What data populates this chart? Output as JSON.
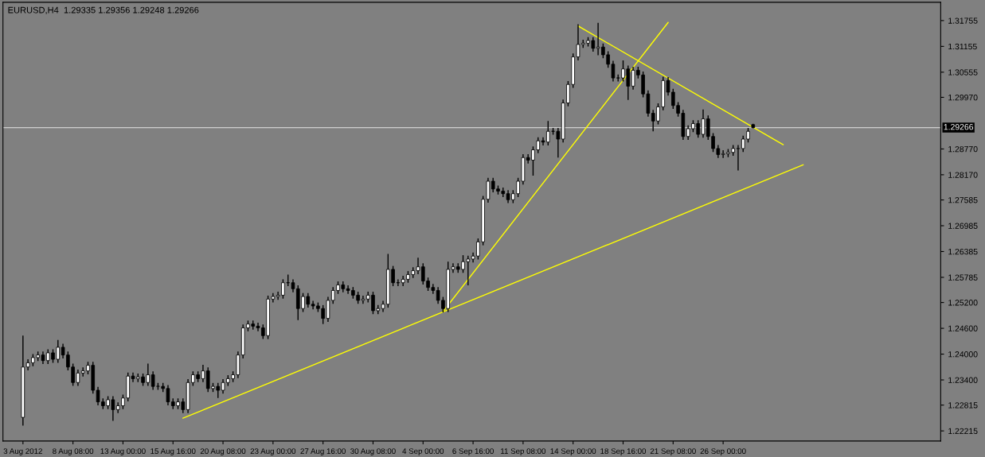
{
  "chart_data": {
    "type": "candlestick",
    "title": "EURUSD,H4  1.29335 1.29356 1.29248 1.29266",
    "categories": [
      "3 Aug 2012",
      null,
      null,
      null,
      null,
      null,
      null,
      null,
      null,
      null,
      "8 Aug 08:00",
      null,
      null,
      null,
      null,
      null,
      null,
      null,
      null,
      null,
      "13 Aug 00:00",
      null,
      null,
      null,
      null,
      null,
      null,
      null,
      null,
      null,
      "15 Aug 16:00",
      null,
      null,
      null,
      null,
      null,
      null,
      null,
      null,
      null,
      "20 Aug 08:00",
      null,
      null,
      null,
      null,
      null,
      null,
      null,
      null,
      null,
      "23 Aug 00:00",
      null,
      null,
      null,
      null,
      null,
      null,
      null,
      null,
      null,
      "27 Aug 16:00",
      null,
      null,
      null,
      null,
      null,
      null,
      null,
      null,
      null,
      "30 Aug 08:00",
      null,
      null,
      null,
      null,
      null,
      null,
      null,
      null,
      null,
      "4 Sep 00:00",
      null,
      null,
      null,
      null,
      null,
      null,
      null,
      null,
      null,
      "6 Sep 16:00",
      null,
      null,
      null,
      null,
      null,
      null,
      null,
      null,
      null,
      "11 Sep 08:00",
      null,
      null,
      null,
      null,
      null,
      null,
      null,
      null,
      null,
      "14 Sep 00:00",
      null,
      null,
      null,
      null,
      null,
      null,
      null,
      null,
      null,
      "18 Sep 16:00",
      null,
      null,
      null,
      null,
      null,
      null,
      null,
      null,
      null,
      "21 Sep 08:00",
      null,
      null,
      null,
      null,
      null,
      null,
      null,
      null,
      null,
      "26 Sep 00:00",
      null,
      null,
      null,
      null,
      null,
      null,
      null,
      null,
      null,
      null,
      null,
      null,
      null,
      null,
      null,
      null,
      null,
      null,
      null,
      null,
      null,
      null,
      null,
      null,
      null,
      null,
      null,
      null,
      null,
      null,
      null,
      null,
      null,
      null,
      null,
      null,
      null,
      null,
      null,
      null,
      null,
      null,
      null
    ],
    "ohlc": [
      [
        1.2253,
        1.2443,
        1.2234,
        1.237
      ],
      [
        1.237,
        1.2388,
        1.2362,
        1.238
      ],
      [
        1.238,
        1.24,
        1.2372,
        1.2392
      ],
      [
        1.2392,
        1.2406,
        1.2384,
        1.2398
      ],
      [
        1.2398,
        1.2406,
        1.2377,
        1.2385
      ],
      [
        1.2385,
        1.2411,
        1.2377,
        1.2403
      ],
      [
        1.2403,
        1.2411,
        1.238,
        1.2388
      ],
      [
        1.2388,
        1.2433,
        1.238,
        1.2416
      ],
      [
        1.2416,
        1.2424,
        1.239,
        1.2398
      ],
      [
        1.2398,
        1.2406,
        1.2362,
        1.237
      ],
      [
        1.237,
        1.2378,
        1.2326,
        1.2334
      ],
      [
        1.2334,
        1.2364,
        1.2326,
        1.2356
      ],
      [
        1.2356,
        1.2369,
        1.2348,
        1.2361
      ],
      [
        1.2361,
        1.2382,
        1.2353,
        1.2374
      ],
      [
        1.2374,
        1.2382,
        1.2308,
        1.2316
      ],
      [
        1.2316,
        1.2324,
        1.2281,
        1.2289
      ],
      [
        1.2289,
        1.2297,
        1.2272,
        1.228
      ],
      [
        1.228,
        1.2302,
        1.2272,
        1.2294
      ],
      [
        1.2294,
        1.2302,
        1.2245,
        1.2271
      ],
      [
        1.2271,
        1.2288,
        1.2263,
        1.228
      ],
      [
        1.228,
        1.2306,
        1.2272,
        1.2298
      ],
      [
        1.2298,
        1.2357,
        1.229,
        1.2349
      ],
      [
        1.2349,
        1.2357,
        1.2335,
        1.2343
      ],
      [
        1.2343,
        1.2355,
        1.2335,
        1.2347
      ],
      [
        1.2347,
        1.2355,
        1.2326,
        1.2334
      ],
      [
        1.2334,
        1.2378,
        1.2326,
        1.2352
      ],
      [
        1.2352,
        1.236,
        1.2317,
        1.2325
      ],
      [
        1.2325,
        1.2333,
        1.2317,
        1.2325
      ],
      [
        1.2325,
        1.2333,
        1.2312,
        1.232
      ],
      [
        1.232,
        1.2328,
        1.2281,
        1.2289
      ],
      [
        1.2289,
        1.2297,
        1.2272,
        1.228
      ],
      [
        1.228,
        1.2297,
        1.2272,
        1.2289
      ],
      [
        1.2289,
        1.2297,
        1.2263,
        1.2271
      ],
      [
        1.2271,
        1.2342,
        1.2263,
        1.2334
      ],
      [
        1.2334,
        1.236,
        1.2326,
        1.2352
      ],
      [
        1.2352,
        1.236,
        1.2335,
        1.2343
      ],
      [
        1.2343,
        1.2375,
        1.2335,
        1.2361
      ],
      [
        1.2361,
        1.2369,
        1.2312,
        1.232
      ],
      [
        1.232,
        1.2333,
        1.2312,
        1.2325
      ],
      [
        1.2325,
        1.2333,
        1.2298,
        1.2316
      ],
      [
        1.2316,
        1.2342,
        1.2308,
        1.2334
      ],
      [
        1.2334,
        1.2351,
        1.2326,
        1.2343
      ],
      [
        1.2343,
        1.236,
        1.2335,
        1.2352
      ],
      [
        1.2352,
        1.2406,
        1.2344,
        1.2398
      ],
      [
        1.2398,
        1.2469,
        1.239,
        1.2461
      ],
      [
        1.2461,
        1.2478,
        1.2453,
        1.247
      ],
      [
        1.247,
        1.2478,
        1.2457,
        1.2465
      ],
      [
        1.2465,
        1.2473,
        1.2453,
        1.2461
      ],
      [
        1.2461,
        1.2469,
        1.2435,
        1.2443
      ],
      [
        1.2443,
        1.2536,
        1.2435,
        1.2528
      ],
      [
        1.2528,
        1.2542,
        1.252,
        1.2534
      ],
      [
        1.2534,
        1.2545,
        1.2526,
        1.2537
      ],
      [
        1.2537,
        1.2574,
        1.2529,
        1.2566
      ],
      [
        1.2566,
        1.2585,
        1.2558,
        1.2566
      ],
      [
        1.2566,
        1.2574,
        1.2544,
        1.2552
      ],
      [
        1.2552,
        1.256,
        1.2479,
        1.2506
      ],
      [
        1.2506,
        1.2542,
        1.2498,
        1.2534
      ],
      [
        1.2534,
        1.2542,
        1.2508,
        1.2516
      ],
      [
        1.2516,
        1.2524,
        1.2504,
        1.2512
      ],
      [
        1.2512,
        1.252,
        1.2498,
        1.2506
      ],
      [
        1.2506,
        1.2514,
        1.247,
        1.2483
      ],
      [
        1.2483,
        1.2533,
        1.2475,
        1.2525
      ],
      [
        1.2525,
        1.2556,
        1.2517,
        1.2548
      ],
      [
        1.2548,
        1.2569,
        1.254,
        1.2561
      ],
      [
        1.2561,
        1.2569,
        1.2544,
        1.2552
      ],
      [
        1.2552,
        1.256,
        1.254,
        1.2548
      ],
      [
        1.2548,
        1.2556,
        1.2529,
        1.2537
      ],
      [
        1.2537,
        1.2545,
        1.2517,
        1.2525
      ],
      [
        1.2525,
        1.2536,
        1.2517,
        1.2528
      ],
      [
        1.2528,
        1.2545,
        1.252,
        1.2537
      ],
      [
        1.2537,
        1.2545,
        1.2493,
        1.2501
      ],
      [
        1.2501,
        1.2514,
        1.2493,
        1.2506
      ],
      [
        1.2506,
        1.2524,
        1.2498,
        1.2516
      ],
      [
        1.2516,
        1.2633,
        1.2508,
        1.2597
      ],
      [
        1.2597,
        1.2605,
        1.2558,
        1.2566
      ],
      [
        1.2566,
        1.2574,
        1.2558,
        1.2566
      ],
      [
        1.2566,
        1.2582,
        1.2558,
        1.2574
      ],
      [
        1.2574,
        1.2593,
        1.2566,
        1.2585
      ],
      [
        1.2585,
        1.2602,
        1.2577,
        1.2594
      ],
      [
        1.2594,
        1.2624,
        1.2586,
        1.2603
      ],
      [
        1.2603,
        1.2611,
        1.2562,
        1.257
      ],
      [
        1.257,
        1.2578,
        1.2547,
        1.2555
      ],
      [
        1.2555,
        1.2563,
        1.254,
        1.2548
      ],
      [
        1.2548,
        1.2556,
        1.2517,
        1.2525
      ],
      [
        1.2525,
        1.2533,
        1.2497,
        1.2506
      ],
      [
        1.2506,
        1.2615,
        1.2498,
        1.2597
      ],
      [
        1.2597,
        1.2611,
        1.2589,
        1.2603
      ],
      [
        1.2603,
        1.2611,
        1.2589,
        1.2597
      ],
      [
        1.2597,
        1.263,
        1.2589,
        1.2615
      ],
      [
        1.2615,
        1.2629,
        1.256,
        1.2621
      ],
      [
        1.2621,
        1.2636,
        1.2613,
        1.2628
      ],
      [
        1.2628,
        1.2669,
        1.262,
        1.2661
      ],
      [
        1.2661,
        1.2768,
        1.2653,
        1.276
      ],
      [
        1.276,
        1.281,
        1.2752,
        1.2802
      ],
      [
        1.2802,
        1.281,
        1.2776,
        1.2784
      ],
      [
        1.2784,
        1.2792,
        1.2771,
        1.2779
      ],
      [
        1.2779,
        1.2787,
        1.2765,
        1.2773
      ],
      [
        1.2773,
        1.2781,
        1.2751,
        1.2759
      ],
      [
        1.2759,
        1.2781,
        1.2751,
        1.2773
      ],
      [
        1.2773,
        1.281,
        1.2765,
        1.2802
      ],
      [
        1.2802,
        1.2865,
        1.2794,
        1.2857
      ],
      [
        1.2857,
        1.2865,
        1.2843,
        1.2851
      ],
      [
        1.2851,
        1.2883,
        1.2815,
        1.2875
      ],
      [
        1.2875,
        1.2904,
        1.2867,
        1.2896
      ],
      [
        1.2896,
        1.2904,
        1.2885,
        1.2893
      ],
      [
        1.2893,
        1.2942,
        1.2885,
        1.2918
      ],
      [
        1.2918,
        1.2926,
        1.291,
        1.2918
      ],
      [
        1.2918,
        1.2926,
        1.2857,
        1.29
      ],
      [
        1.29,
        1.2992,
        1.2892,
        1.2984
      ],
      [
        1.2984,
        1.3035,
        1.2976,
        1.3027
      ],
      [
        1.3027,
        1.3099,
        1.3019,
        1.3091
      ],
      [
        1.3091,
        1.3167,
        1.3083,
        1.312
      ],
      [
        1.312,
        1.3131,
        1.3112,
        1.3123
      ],
      [
        1.3123,
        1.3137,
        1.3115,
        1.3129
      ],
      [
        1.3129,
        1.3137,
        1.3103,
        1.3111
      ],
      [
        1.3111,
        1.317,
        1.3095,
        1.3114
      ],
      [
        1.3114,
        1.3122,
        1.3088,
        1.3096
      ],
      [
        1.3096,
        1.3104,
        1.3066,
        1.3074
      ],
      [
        1.3074,
        1.3082,
        1.3034,
        1.3042
      ],
      [
        1.3042,
        1.305,
        1.3034,
        1.3042
      ],
      [
        1.3042,
        1.3083,
        1.3034,
        1.3063
      ],
      [
        1.3063,
        1.3071,
        1.2991,
        1.3023
      ],
      [
        1.3023,
        1.3068,
        1.3015,
        1.306
      ],
      [
        1.306,
        1.3068,
        1.3041,
        1.3049
      ],
      [
        1.3049,
        1.3057,
        1.2997,
        1.3005
      ],
      [
        1.3005,
        1.3013,
        1.2952,
        1.296
      ],
      [
        1.296,
        1.2968,
        1.2918,
        1.2942
      ],
      [
        1.2942,
        1.2983,
        1.2934,
        1.2975
      ],
      [
        1.2975,
        1.3045,
        1.2967,
        1.3036
      ],
      [
        1.3036,
        1.3044,
        1.3001,
        1.3009
      ],
      [
        1.3009,
        1.3017,
        1.297,
        1.2978
      ],
      [
        1.2978,
        1.2986,
        1.2952,
        1.296
      ],
      [
        1.296,
        1.2968,
        1.2898,
        1.2906
      ],
      [
        1.2906,
        1.2932,
        1.2898,
        1.2924
      ],
      [
        1.2924,
        1.2944,
        1.2916,
        1.2936
      ],
      [
        1.2936,
        1.2944,
        1.2903,
        1.2911
      ],
      [
        1.2911,
        1.2969,
        1.2903,
        1.2947
      ],
      [
        1.2947,
        1.2955,
        1.2898,
        1.2906
      ],
      [
        1.2906,
        1.2914,
        1.287,
        1.2878
      ],
      [
        1.2878,
        1.2886,
        1.2856,
        1.2864
      ],
      [
        1.2864,
        1.2874,
        1.2856,
        1.2866
      ],
      [
        1.2866,
        1.2877,
        1.2858,
        1.2869
      ],
      [
        1.2869,
        1.2886,
        1.2861,
        1.2878
      ],
      [
        1.2878,
        1.2886,
        1.2827,
        1.2878
      ],
      [
        1.2878,
        1.2908,
        1.287,
        1.29
      ],
      [
        1.29,
        1.2926,
        1.2892,
        1.2918
      ],
      [
        1.29335,
        1.29356,
        1.29248,
        1.29266
      ],
      null,
      null,
      null,
      null,
      null,
      null,
      null,
      null,
      null,
      null,
      null,
      null,
      null,
      null,
      null,
      null,
      null,
      null,
      null,
      null,
      null,
      null,
      null,
      null,
      null,
      null,
      null,
      null,
      null,
      null,
      null,
      null,
      null,
      null,
      null,
      null,
      null
    ],
    "series": [
      {
        "type": "line",
        "color": "#ffff00",
        "values": [
          null,
          null,
          null,
          null,
          null,
          null,
          null,
          null,
          null,
          null,
          null,
          null,
          null,
          null,
          null,
          null,
          null,
          null,
          null,
          null,
          null,
          null,
          null,
          null,
          null,
          null,
          null,
          null,
          null,
          null,
          null,
          null,
          1.2251,
          null,
          null,
          null,
          null,
          null,
          null,
          null,
          null,
          null,
          null,
          null,
          null,
          null,
          null,
          null,
          null,
          null,
          null,
          null,
          null,
          null,
          null,
          null,
          null,
          null,
          null,
          null,
          null,
          null,
          null,
          null,
          null,
          null,
          null,
          null,
          null,
          null,
          null,
          null,
          null,
          null,
          null,
          null,
          null,
          null,
          null,
          null,
          null,
          null,
          null,
          null,
          null,
          null,
          null,
          null,
          null,
          null,
          null,
          null,
          null,
          null,
          null,
          null,
          null,
          null,
          null,
          null,
          null,
          null,
          null,
          null,
          null,
          null,
          null,
          null,
          null,
          null,
          null,
          null,
          null,
          null,
          null,
          null,
          null,
          null,
          null,
          null,
          null,
          null,
          null,
          null,
          null,
          null,
          null,
          null,
          null,
          null,
          null,
          null,
          null,
          null,
          null,
          null,
          null,
          null,
          null,
          null,
          null,
          null,
          null,
          null,
          null,
          null,
          null,
          null,
          null,
          null,
          null,
          null,
          null,
          null,
          null,
          null,
          1.284,
          null,
          null,
          null,
          null,
          null,
          null,
          null,
          null,
          null,
          null,
          null,
          null,
          null,
          null,
          null,
          null,
          null,
          null,
          null,
          null,
          null,
          null,
          null,
          null,
          null,
          null,
          null
        ]
      },
      {
        "type": "line",
        "color": "#ffff00",
        "values": [
          null,
          null,
          null,
          null,
          null,
          null,
          null,
          null,
          null,
          null,
          null,
          null,
          null,
          null,
          null,
          null,
          null,
          null,
          null,
          null,
          null,
          null,
          null,
          null,
          null,
          null,
          null,
          null,
          null,
          null,
          null,
          null,
          null,
          null,
          null,
          null,
          null,
          null,
          null,
          null,
          null,
          null,
          null,
          null,
          null,
          null,
          null,
          null,
          null,
          null,
          null,
          null,
          null,
          null,
          null,
          null,
          null,
          null,
          null,
          null,
          null,
          null,
          null,
          null,
          null,
          null,
          null,
          null,
          null,
          null,
          null,
          null,
          null,
          null,
          null,
          null,
          null,
          null,
          null,
          null,
          null,
          null,
          null,
          null,
          1.2499,
          null,
          null,
          null,
          null,
          null,
          null,
          null,
          null,
          null,
          null,
          null,
          null,
          null,
          null,
          null,
          null,
          null,
          null,
          null,
          null,
          null,
          null,
          null,
          null,
          null,
          null,
          null,
          null,
          null,
          null,
          null,
          null,
          null,
          null,
          null,
          null,
          null,
          null,
          null,
          null,
          null,
          null,
          null,
          null,
          1.3171,
          null,
          null,
          null,
          null,
          null,
          null,
          null,
          null,
          null,
          null,
          null,
          null,
          null,
          null,
          null,
          null,
          null,
          null,
          null,
          null,
          null,
          null,
          null,
          null,
          null,
          null,
          null,
          null,
          null,
          null,
          null,
          null,
          null,
          null,
          null,
          null,
          null,
          null,
          null,
          null,
          null,
          null,
          null,
          null,
          null,
          null,
          null,
          null,
          null,
          null,
          null,
          null,
          null,
          null
        ]
      },
      {
        "type": "line",
        "color": "#ffff00",
        "values": [
          null,
          null,
          null,
          null,
          null,
          null,
          null,
          null,
          null,
          null,
          null,
          null,
          null,
          null,
          null,
          null,
          null,
          null,
          null,
          null,
          null,
          null,
          null,
          null,
          null,
          null,
          null,
          null,
          null,
          null,
          null,
          null,
          null,
          null,
          null,
          null,
          null,
          null,
          null,
          null,
          null,
          null,
          null,
          null,
          null,
          null,
          null,
          null,
          null,
          null,
          null,
          null,
          null,
          null,
          null,
          null,
          null,
          null,
          null,
          null,
          null,
          null,
          null,
          null,
          null,
          null,
          null,
          null,
          null,
          null,
          null,
          null,
          null,
          null,
          null,
          null,
          null,
          null,
          null,
          null,
          null,
          null,
          null,
          null,
          null,
          null,
          null,
          null,
          null,
          null,
          null,
          null,
          null,
          null,
          null,
          null,
          null,
          null,
          null,
          null,
          null,
          null,
          null,
          null,
          null,
          null,
          null,
          null,
          null,
          null,
          null,
          1.3163,
          null,
          null,
          null,
          null,
          null,
          null,
          null,
          null,
          null,
          null,
          null,
          null,
          null,
          null,
          null,
          null,
          null,
          null,
          null,
          null,
          null,
          null,
          null,
          null,
          null,
          null,
          null,
          null,
          null,
          null,
          null,
          null,
          null,
          null,
          null,
          null,
          null,
          null,
          null,
          null,
          1.2887,
          null,
          null,
          null,
          null,
          null,
          null,
          null,
          null,
          null,
          null,
          null,
          null,
          null,
          null,
          null,
          null,
          null,
          null,
          null,
          null,
          null,
          null,
          null,
          null,
          null,
          null,
          null,
          null,
          null,
          null,
          null
        ]
      }
    ],
    "ylim": [
      1.2198,
      1.3218
    ],
    "yticks": [
      1.22215,
      1.22815,
      {
        "value": 1.234,
        "label": "1.23400"
      },
      {
        "value": 1.24,
        "label": "1.24000"
      },
      {
        "value": 1.246,
        "label": "1.24600"
      },
      {
        "value": 1.252,
        "label": "1.25200"
      },
      1.25785,
      1.26385,
      1.26985,
      1.27585,
      {
        "value": 1.2817,
        "label": "1.28170"
      },
      {
        "value": 1.2877,
        "label": "1.28770"
      },
      {
        "value": 1.2997,
        "label": "1.29970"
      },
      1.30555,
      1.31155,
      1.31755
    ],
    "ref_lines": [
      {
        "axis": "y",
        "value": 1.29266,
        "label": "1.29266",
        "color": "#d0d0d0"
      }
    ],
    "grid": false,
    "legend": false
  }
}
